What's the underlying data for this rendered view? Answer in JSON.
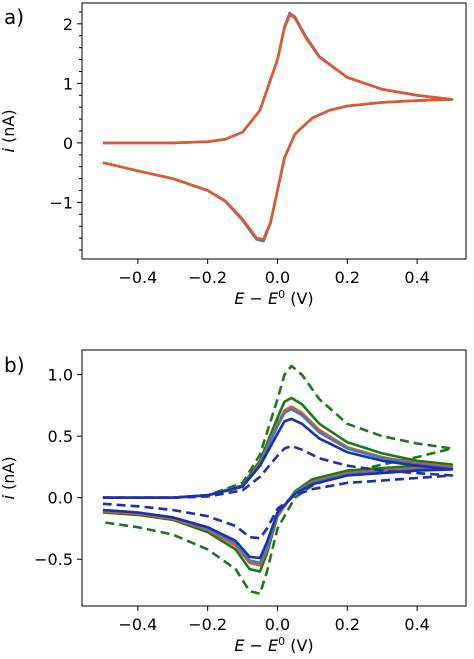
{
  "chart_data": [
    {
      "type": "line",
      "panel_label": "a)",
      "xlabel": "E − E",
      "xlabel_sup": "0",
      "xlabel_unit": " (V)",
      "ylabel_italic": "i",
      "ylabel_rest": " (nA)",
      "xlim": [
        -0.56,
        0.54
      ],
      "ylim": [
        -1.95,
        2.35
      ],
      "xticks": [
        -0.4,
        -0.2,
        0.0,
        0.2,
        0.4
      ],
      "xtick_labels": [
        "−0.4",
        "−0.2",
        "0.0",
        "0.2",
        "0.4"
      ],
      "yticks": [
        -1,
        0,
        1,
        2
      ],
      "ytick_labels": [
        "−1",
        "0",
        "1",
        "2"
      ],
      "minor_yticks": true,
      "series": [
        {
          "color": "#3a7fbf",
          "dash": "solid",
          "x": [
            -0.5,
            -0.4,
            -0.3,
            -0.2,
            -0.15,
            -0.1,
            -0.05,
            0.0,
            0.02,
            0.035,
            0.05,
            0.08,
            0.12,
            0.2,
            0.3,
            0.4,
            0.5,
            0.4,
            0.3,
            0.2,
            0.15,
            0.1,
            0.05,
            0.02,
            0.0,
            -0.02,
            -0.04,
            -0.06,
            -0.1,
            -0.15,
            -0.2,
            -0.3,
            -0.4,
            -0.5
          ],
          "y": [
            0.0,
            0.0,
            0.0,
            0.02,
            0.06,
            0.18,
            0.55,
            1.4,
            1.95,
            2.18,
            2.12,
            1.8,
            1.45,
            1.1,
            0.9,
            0.8,
            0.73,
            0.71,
            0.68,
            0.62,
            0.55,
            0.42,
            0.15,
            -0.25,
            -0.8,
            -1.35,
            -1.65,
            -1.62,
            -1.3,
            -0.98,
            -0.8,
            -0.6,
            -0.47,
            -0.33
          ]
        },
        {
          "color": "#e2572b",
          "dash": "solid",
          "x": [
            -0.5,
            -0.4,
            -0.3,
            -0.2,
            -0.15,
            -0.1,
            -0.05,
            0.0,
            0.02,
            0.035,
            0.05,
            0.08,
            0.12,
            0.2,
            0.3,
            0.4,
            0.5,
            0.4,
            0.3,
            0.2,
            0.15,
            0.1,
            0.05,
            0.02,
            0.0,
            -0.02,
            -0.04,
            -0.06,
            -0.1,
            -0.15,
            -0.2,
            -0.3,
            -0.4,
            -0.5
          ],
          "y": [
            0.0,
            0.0,
            0.0,
            0.02,
            0.06,
            0.18,
            0.55,
            1.4,
            1.93,
            2.15,
            2.1,
            1.78,
            1.44,
            1.1,
            0.9,
            0.8,
            0.73,
            0.71,
            0.68,
            0.62,
            0.55,
            0.42,
            0.15,
            -0.25,
            -0.8,
            -1.33,
            -1.62,
            -1.6,
            -1.28,
            -0.97,
            -0.8,
            -0.6,
            -0.47,
            -0.33
          ]
        }
      ]
    },
    {
      "type": "line",
      "panel_label": "b)",
      "xlabel": "E − E",
      "xlabel_sup": "0",
      "xlabel_unit": " (V)",
      "ylabel_italic": "i",
      "ylabel_rest": " (nA)",
      "xlim": [
        -0.56,
        0.54
      ],
      "ylim": [
        -0.88,
        1.2
      ],
      "xticks": [
        -0.4,
        -0.2,
        0.0,
        0.2,
        0.4
      ],
      "xtick_labels": [
        "−0.4",
        "−0.2",
        "0.0",
        "0.2",
        "0.4"
      ],
      "yticks": [
        -0.5,
        0.0,
        0.5,
        1.0
      ],
      "ytick_labels": [
        "−0.5",
        "0.0",
        "0.5",
        "1.0"
      ],
      "minor_yticks": false,
      "series": [
        {
          "color": "#1a7a1a",
          "dash": "dashed",
          "x": [
            -0.5,
            -0.3,
            -0.2,
            -0.1,
            -0.05,
            0.0,
            0.02,
            0.04,
            0.07,
            0.12,
            0.2,
            0.3,
            0.4,
            0.5,
            0.4,
            0.3,
            0.2,
            0.1,
            0.05,
            0.0,
            -0.03,
            -0.05,
            -0.08,
            -0.12,
            -0.2,
            -0.3,
            -0.4,
            -0.5
          ],
          "y": [
            0.0,
            0.0,
            0.02,
            0.12,
            0.35,
            0.8,
            1.0,
            1.07,
            1.0,
            0.8,
            0.6,
            0.5,
            0.44,
            0.4,
            0.33,
            0.27,
            0.2,
            0.1,
            0.0,
            -0.25,
            -0.6,
            -0.78,
            -0.76,
            -0.58,
            -0.42,
            -0.3,
            -0.24,
            -0.2
          ]
        },
        {
          "color": "#1a7a1a",
          "dash": "solid",
          "x": [
            -0.5,
            -0.3,
            -0.2,
            -0.1,
            -0.05,
            0.0,
            0.02,
            0.04,
            0.07,
            0.12,
            0.2,
            0.3,
            0.4,
            0.5,
            0.4,
            0.3,
            0.2,
            0.1,
            0.05,
            0.0,
            -0.03,
            -0.05,
            -0.08,
            -0.12,
            -0.2,
            -0.3,
            -0.4,
            -0.5
          ],
          "y": [
            0.0,
            0.0,
            0.02,
            0.1,
            0.3,
            0.65,
            0.78,
            0.81,
            0.76,
            0.6,
            0.45,
            0.36,
            0.3,
            0.27,
            0.26,
            0.24,
            0.22,
            0.15,
            0.05,
            -0.15,
            -0.45,
            -0.6,
            -0.58,
            -0.42,
            -0.28,
            -0.18,
            -0.14,
            -0.12
          ]
        },
        {
          "color": "#e2572b",
          "dash": "solid",
          "x": [
            -0.5,
            -0.3,
            -0.2,
            -0.1,
            -0.05,
            0.0,
            0.02,
            0.04,
            0.07,
            0.12,
            0.2,
            0.3,
            0.4,
            0.5,
            0.4,
            0.3,
            0.2,
            0.1,
            0.05,
            0.0,
            -0.03,
            -0.05,
            -0.08,
            -0.12,
            -0.2,
            -0.3,
            -0.4,
            -0.5
          ],
          "y": [
            0.0,
            0.0,
            0.02,
            0.09,
            0.28,
            0.6,
            0.71,
            0.74,
            0.69,
            0.55,
            0.41,
            0.33,
            0.28,
            0.25,
            0.24,
            0.22,
            0.2,
            0.13,
            0.04,
            -0.14,
            -0.42,
            -0.55,
            -0.53,
            -0.39,
            -0.26,
            -0.17,
            -0.13,
            -0.11
          ]
        },
        {
          "color": "#3a7fbf",
          "dash": "solid",
          "x": [
            -0.5,
            -0.3,
            -0.2,
            -0.1,
            -0.05,
            0.0,
            0.02,
            0.04,
            0.07,
            0.12,
            0.2,
            0.3,
            0.4,
            0.5,
            0.4,
            0.3,
            0.2,
            0.1,
            0.05,
            0.0,
            -0.03,
            -0.05,
            -0.08,
            -0.12,
            -0.2,
            -0.3,
            -0.4,
            -0.5
          ],
          "y": [
            0.0,
            0.0,
            0.02,
            0.09,
            0.27,
            0.58,
            0.69,
            0.72,
            0.67,
            0.53,
            0.4,
            0.32,
            0.27,
            0.24,
            0.23,
            0.21,
            0.19,
            0.12,
            0.04,
            -0.13,
            -0.4,
            -0.53,
            -0.51,
            -0.37,
            -0.25,
            -0.16,
            -0.12,
            -0.1
          ]
        },
        {
          "color": "#1f2fb0",
          "dash": "solid",
          "x": [
            -0.5,
            -0.3,
            -0.2,
            -0.1,
            -0.05,
            0.0,
            0.02,
            0.04,
            0.07,
            0.12,
            0.2,
            0.3,
            0.4,
            0.5,
            0.4,
            0.3,
            0.2,
            0.1,
            0.05,
            0.0,
            -0.03,
            -0.05,
            -0.08,
            -0.12,
            -0.2,
            -0.3,
            -0.4,
            -0.5
          ],
          "y": [
            0.0,
            0.0,
            0.02,
            0.09,
            0.26,
            0.52,
            0.62,
            0.64,
            0.6,
            0.48,
            0.37,
            0.3,
            0.26,
            0.23,
            0.22,
            0.2,
            0.18,
            0.11,
            0.03,
            -0.12,
            -0.36,
            -0.49,
            -0.48,
            -0.35,
            -0.24,
            -0.16,
            -0.12,
            -0.1
          ]
        },
        {
          "color": "#1f2fb0",
          "dash": "dashed",
          "x": [
            -0.5,
            -0.3,
            -0.2,
            -0.1,
            -0.05,
            0.0,
            0.02,
            0.04,
            0.07,
            0.12,
            0.2,
            0.3,
            0.4,
            0.5,
            0.4,
            0.3,
            0.2,
            0.1,
            0.05,
            0.0,
            -0.03,
            -0.05,
            -0.08,
            -0.12,
            -0.2,
            -0.3,
            -0.4,
            -0.5
          ],
          "y": [
            0.0,
            0.0,
            0.01,
            0.06,
            0.17,
            0.34,
            0.4,
            0.42,
            0.39,
            0.32,
            0.26,
            0.22,
            0.2,
            0.18,
            0.16,
            0.14,
            0.12,
            0.07,
            0.02,
            -0.09,
            -0.25,
            -0.33,
            -0.32,
            -0.23,
            -0.15,
            -0.1,
            -0.07,
            -0.05
          ]
        }
      ]
    }
  ]
}
